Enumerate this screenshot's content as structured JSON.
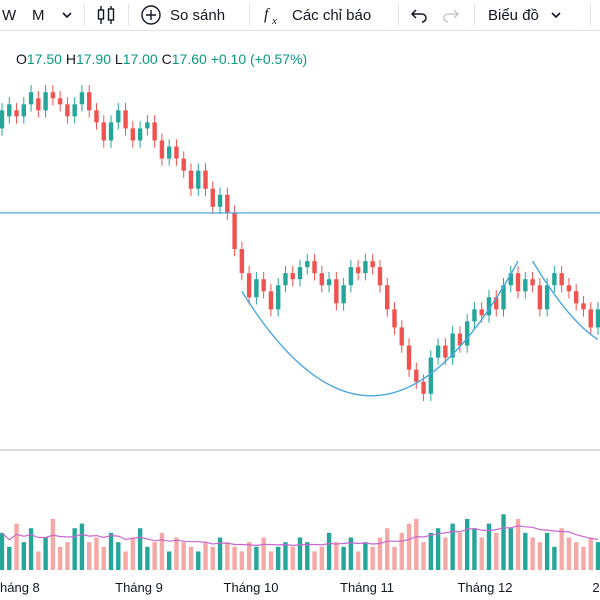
{
  "toolbar": {
    "interval_w": "W",
    "interval_m": "M",
    "compare_label": "So sánh",
    "indicators_label": "Các chỉ báo",
    "chart_type_label": "Biểu đồ"
  },
  "legend": {
    "o_key": "O",
    "o_val": "17.50",
    "h_key": "H",
    "h_val": "17.90",
    "l_key": "L",
    "l_val": "17.00",
    "c_key": "C",
    "c_val": "17.60",
    "change": "+0.10 (+0.57%)"
  },
  "colors": {
    "up": "#26a69a",
    "down": "#ef5350",
    "up_vol": "#26a69a",
    "down_vol": "#f4a9a6",
    "line": "#4aa8e0",
    "ma": "#c867cf"
  },
  "chart_data": {
    "type": "candlestick",
    "x_ticks": [
      "háng 8",
      "Tháng 9",
      "Tháng 10",
      "Tháng 11",
      "Tháng 12",
      "2"
    ],
    "horizontal_line": 16.2,
    "price": [
      [
        17.6,
        17.9
      ],
      [
        17.8,
        18.0
      ],
      [
        17.9,
        17.8
      ],
      [
        17.8,
        18.0
      ],
      [
        18.0,
        18.2
      ],
      [
        18.1,
        17.9
      ],
      [
        17.9,
        18.2
      ],
      [
        18.2,
        18.1
      ],
      [
        18.1,
        18.0
      ],
      [
        18.0,
        17.8
      ],
      [
        17.8,
        18.0
      ],
      [
        18.0,
        18.2
      ],
      [
        18.2,
        17.9
      ],
      [
        17.9,
        17.7
      ],
      [
        17.7,
        17.4
      ],
      [
        17.4,
        17.7
      ],
      [
        17.7,
        17.9
      ],
      [
        17.9,
        17.6
      ],
      [
        17.6,
        17.4
      ],
      [
        17.4,
        17.6
      ],
      [
        17.6,
        17.7
      ],
      [
        17.7,
        17.4
      ],
      [
        17.4,
        17.1
      ],
      [
        17.1,
        17.3
      ],
      [
        17.3,
        17.1
      ],
      [
        17.1,
        16.9
      ],
      [
        16.9,
        16.6
      ],
      [
        16.6,
        16.9
      ],
      [
        16.9,
        16.6
      ],
      [
        16.6,
        16.3
      ],
      [
        16.3,
        16.5
      ],
      [
        16.5,
        16.2
      ],
      [
        16.2,
        15.6
      ],
      [
        15.6,
        15.2
      ],
      [
        15.2,
        14.8
      ],
      [
        14.8,
        15.1
      ],
      [
        15.1,
        14.9
      ],
      [
        14.9,
        14.6
      ],
      [
        14.6,
        15.0
      ],
      [
        15.0,
        15.2
      ],
      [
        15.2,
        15.1
      ],
      [
        15.1,
        15.3
      ],
      [
        15.3,
        15.4
      ],
      [
        15.4,
        15.2
      ],
      [
        15.2,
        15.0
      ],
      [
        15.0,
        15.1
      ],
      [
        15.1,
        14.7
      ],
      [
        14.7,
        15.0
      ],
      [
        15.0,
        15.3
      ],
      [
        15.3,
        15.2
      ],
      [
        15.2,
        15.4
      ],
      [
        15.4,
        15.3
      ],
      [
        15.3,
        15.0
      ],
      [
        15.0,
        14.6
      ],
      [
        14.6,
        14.3
      ],
      [
        14.3,
        14.0
      ],
      [
        14.0,
        13.6
      ],
      [
        13.6,
        13.4
      ],
      [
        13.4,
        13.2
      ],
      [
        13.2,
        13.8
      ],
      [
        13.8,
        14.0
      ],
      [
        14.0,
        13.8
      ],
      [
        13.8,
        14.2
      ],
      [
        14.2,
        14.0
      ],
      [
        14.0,
        14.4
      ],
      [
        14.4,
        14.6
      ],
      [
        14.6,
        14.5
      ],
      [
        14.5,
        14.8
      ],
      [
        14.8,
        14.6
      ],
      [
        14.6,
        15.0
      ],
      [
        15.0,
        15.2
      ],
      [
        15.2,
        14.9
      ],
      [
        14.9,
        15.1
      ],
      [
        15.1,
        15.0
      ],
      [
        15.0,
        14.6
      ],
      [
        14.6,
        15.0
      ],
      [
        15.0,
        15.2
      ],
      [
        15.2,
        15.0
      ],
      [
        15.0,
        14.9
      ],
      [
        14.9,
        14.7
      ],
      [
        14.7,
        14.6
      ],
      [
        14.6,
        14.3
      ],
      [
        14.3,
        14.6
      ]
    ],
    "volume": [
      8,
      5,
      10,
      6,
      9,
      4,
      7,
      11,
      5,
      6,
      9,
      10,
      6,
      7,
      5,
      8,
      6,
      4,
      7,
      9,
      5,
      6,
      8,
      4,
      7,
      6,
      5,
      4,
      6,
      5,
      7,
      6,
      5,
      4,
      6,
      5,
      7,
      4,
      5,
      6,
      5,
      7,
      6,
      4,
      5,
      8,
      6,
      5,
      7,
      4,
      6,
      5,
      7,
      9,
      5,
      8,
      10,
      11,
      6,
      8,
      9,
      7,
      10,
      8,
      11,
      9,
      7,
      10,
      8,
      12,
      9,
      11,
      8,
      7,
      6,
      8,
      5,
      9,
      7,
      6,
      5,
      7,
      6
    ]
  }
}
